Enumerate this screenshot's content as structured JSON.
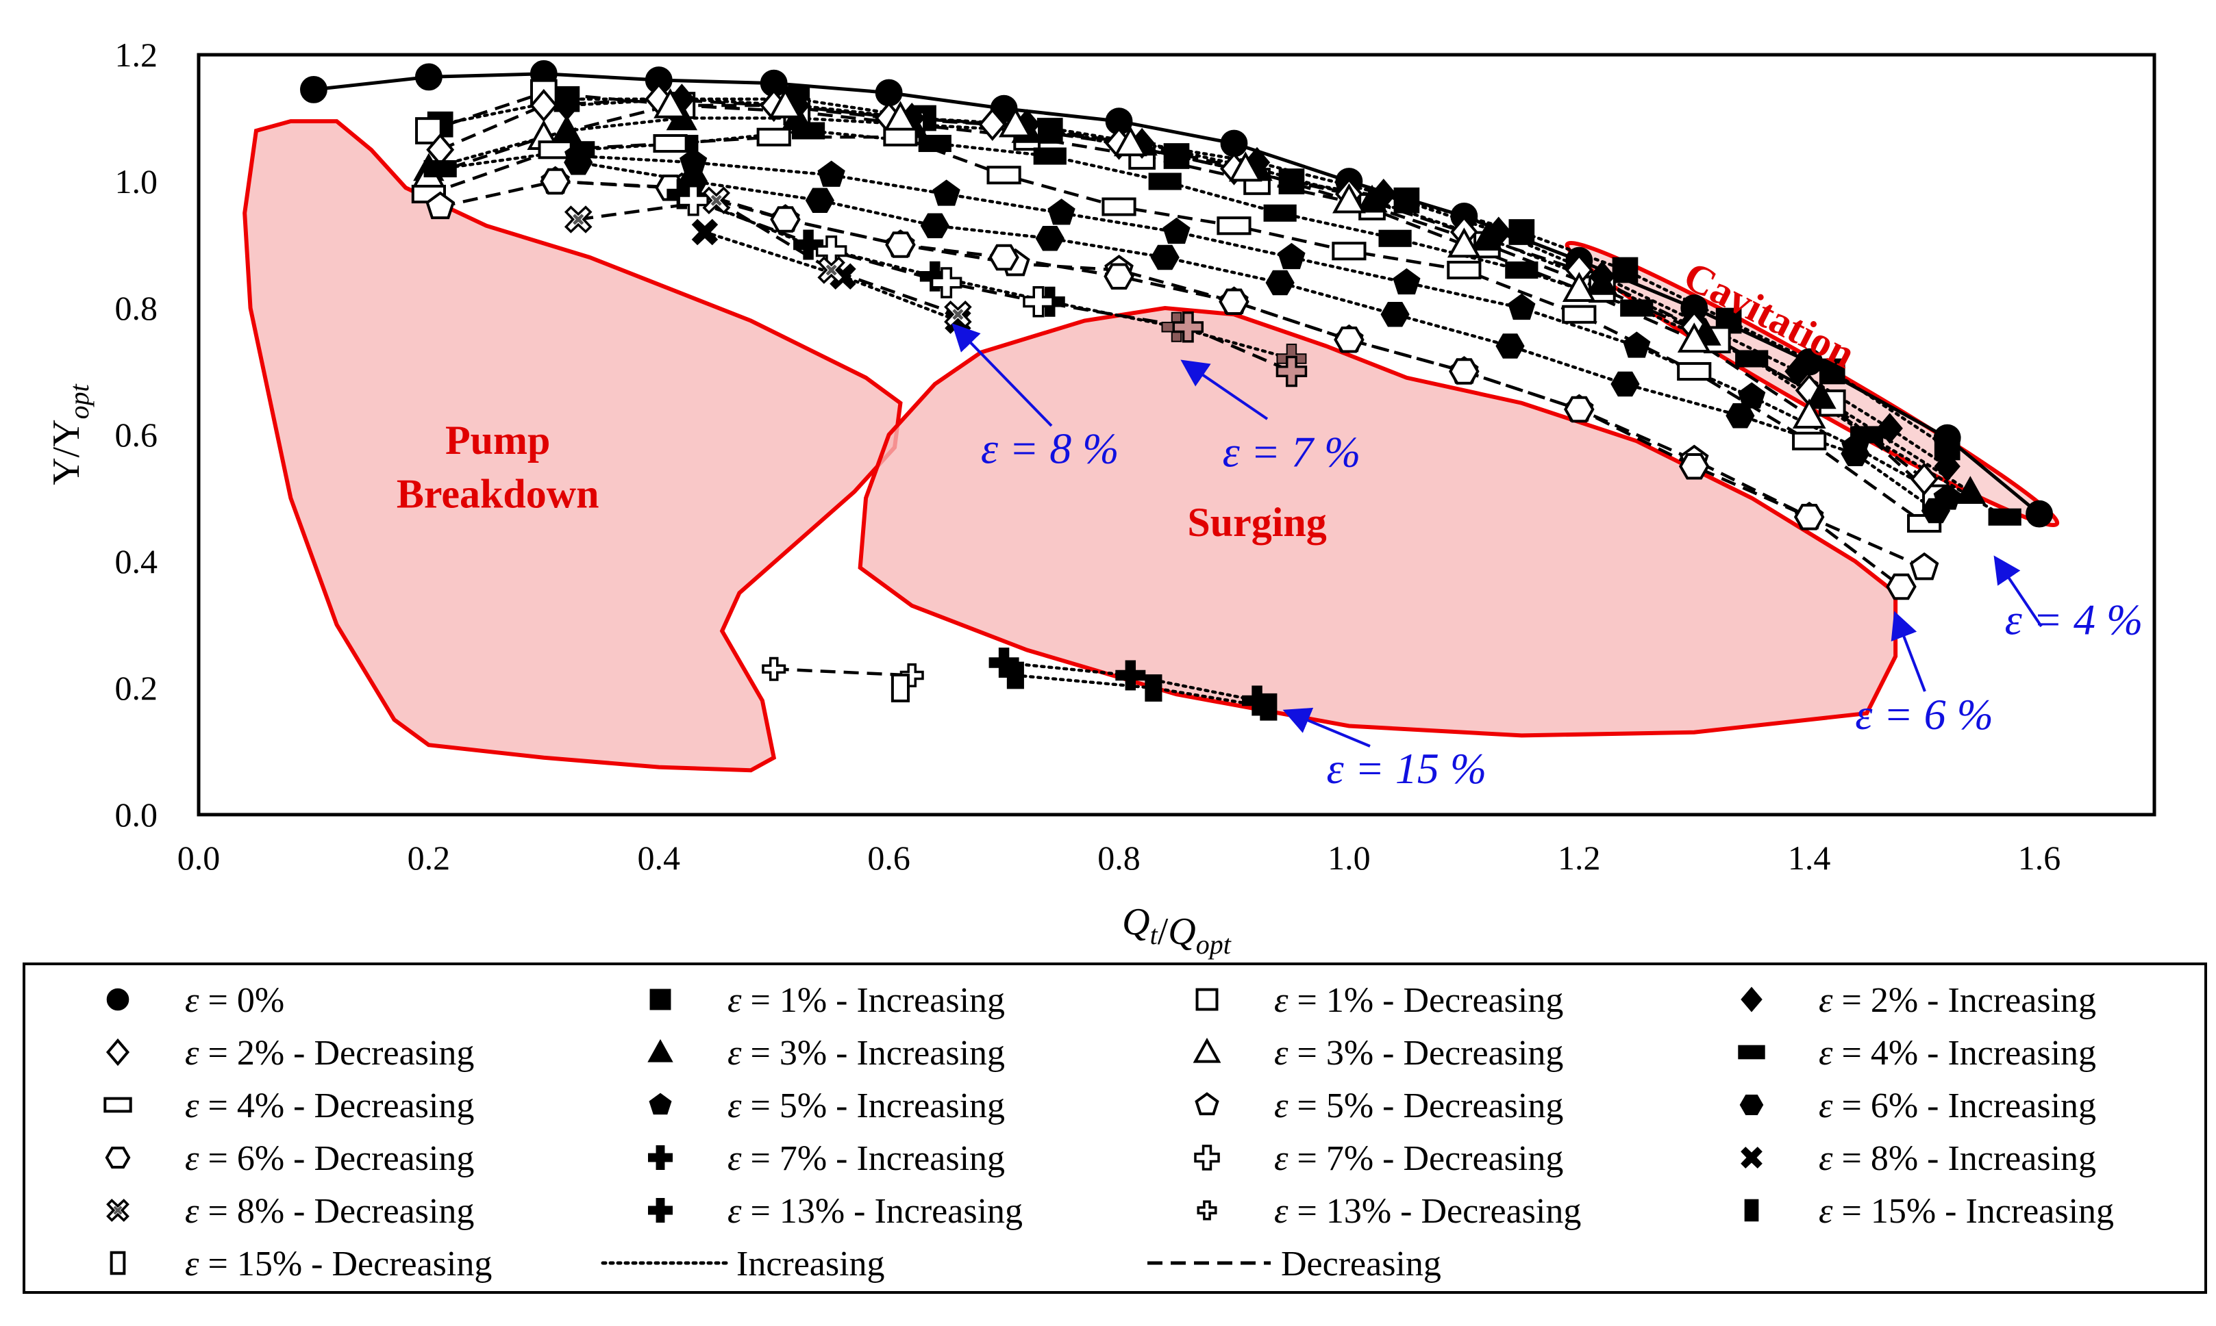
{
  "chart_data": {
    "type": "scatter",
    "title": "",
    "xlabel": "Q_t/Q_opt",
    "ylabel": "Υ/Υ_opt",
    "xlim": [
      0.0,
      1.7
    ],
    "ylim": [
      0.0,
      1.2
    ],
    "xticks": [
      "0.0",
      "0.2",
      "0.4",
      "0.6",
      "0.8",
      "1.0",
      "1.2",
      "1.4",
      "1.6"
    ],
    "yticks": [
      "0.0",
      "0.2",
      "0.4",
      "0.6",
      "0.8",
      "1.0",
      "1.2"
    ],
    "grid": false,
    "legend_position": "bottom",
    "regions": [
      {
        "name": "Pump",
        "name2": "Breakdown",
        "label_x": 0.26,
        "label_y": 0.57,
        "label_y2": 0.485
      },
      {
        "name": "Surging",
        "label_x": 0.92,
        "label_y": 0.44
      },
      {
        "name": "Cavitation",
        "label_x": 1.36,
        "label_y": 0.77
      }
    ],
    "eps_annotations": [
      {
        "text": "ε = 8 %",
        "x": 0.74,
        "y": 0.555
      },
      {
        "text": "ε = 7 %",
        "x": 0.95,
        "y": 0.55
      },
      {
        "text": "ε = 4 %",
        "x": 1.63,
        "y": 0.285
      },
      {
        "text": "ε = 6 %",
        "x": 1.5,
        "y": 0.135
      },
      {
        "text": "ε = 15 %",
        "x": 1.05,
        "y": 0.05
      }
    ],
    "series": [
      {
        "name": "ε = 0%",
        "marker": "circle-filled",
        "line": "solid",
        "x": [
          0.1,
          0.2,
          0.3,
          0.4,
          0.5,
          0.6,
          0.7,
          0.8,
          0.9,
          1.0,
          1.1,
          1.2,
          1.3,
          1.4,
          1.52,
          1.6
        ],
        "y": [
          1.145,
          1.165,
          1.17,
          1.16,
          1.155,
          1.14,
          1.115,
          1.095,
          1.06,
          1.0,
          0.945,
          0.875,
          0.8,
          0.715,
          0.595,
          0.475
        ]
      },
      {
        "name": "ε = 1% - Increasing",
        "marker": "square-filled",
        "line": "dotted",
        "x": [
          0.21,
          0.32,
          0.52,
          0.63,
          0.74,
          0.85,
          0.95,
          1.05,
          1.15,
          1.24,
          1.33,
          1.42,
          1.52
        ],
        "y": [
          1.09,
          1.13,
          1.13,
          1.1,
          1.08,
          1.04,
          1.0,
          0.97,
          0.92,
          0.86,
          0.78,
          0.7,
          0.58
        ]
      },
      {
        "name": "ε = 1% - Decreasing",
        "marker": "square-open",
        "line": "dashed",
        "x": [
          0.2,
          0.3,
          0.42,
          0.52,
          0.62,
          0.72,
          0.82,
          0.92,
          1.02,
          1.12,
          1.22,
          1.32,
          1.42,
          1.51
        ],
        "y": [
          1.08,
          1.14,
          1.12,
          1.11,
          1.09,
          1.07,
          1.04,
          1.0,
          0.96,
          0.9,
          0.83,
          0.75,
          0.65,
          0.5
        ]
      },
      {
        "name": "ε = 2% - Increasing",
        "marker": "diamond-filled",
        "line": "dotted",
        "x": [
          0.32,
          0.42,
          0.52,
          0.62,
          0.72,
          0.82,
          0.92,
          1.03,
          1.13,
          1.22,
          1.3,
          1.39,
          1.47,
          1.52
        ],
        "y": [
          1.12,
          1.13,
          1.12,
          1.1,
          1.09,
          1.06,
          1.03,
          0.98,
          0.92,
          0.85,
          0.78,
          0.7,
          0.61,
          0.55
        ]
      },
      {
        "name": "ε = 2% - Decreasing",
        "marker": "diamond-open",
        "line": "dashed",
        "x": [
          0.21,
          0.3,
          0.4,
          0.5,
          0.6,
          0.69,
          0.8,
          0.9,
          1.0,
          1.1,
          1.2,
          1.3,
          1.4,
          1.5
        ],
        "y": [
          1.05,
          1.12,
          1.13,
          1.12,
          1.1,
          1.09,
          1.06,
          1.02,
          0.98,
          0.92,
          0.86,
          0.77,
          0.67,
          0.53
        ]
      },
      {
        "name": "ε = 3% - Increasing",
        "marker": "triangle-filled",
        "line": "dotted",
        "x": [
          0.2,
          0.32,
          0.42,
          0.52,
          0.62,
          0.72,
          0.82,
          0.92,
          1.02,
          1.12,
          1.22,
          1.31,
          1.41,
          1.54
        ],
        "y": [
          1.02,
          1.08,
          1.1,
          1.1,
          1.09,
          1.08,
          1.06,
          1.02,
          0.97,
          0.91,
          0.84,
          0.76,
          0.66,
          0.51
        ]
      },
      {
        "name": "ε = 3% - Decreasing",
        "marker": "triangle-open",
        "line": "dashed",
        "x": [
          0.2,
          0.3,
          0.41,
          0.51,
          0.61,
          0.71,
          0.81,
          0.91,
          1.0,
          1.1,
          1.2,
          1.3,
          1.4
        ],
        "y": [
          1.01,
          1.07,
          1.12,
          1.12,
          1.1,
          1.09,
          1.06,
          1.02,
          0.97,
          0.9,
          0.83,
          0.75,
          0.63
        ]
      },
      {
        "name": "ε = 4% - Increasing",
        "marker": "rect-filled",
        "line": "dotted",
        "x": [
          0.21,
          0.33,
          0.42,
          0.53,
          0.64,
          0.74,
          0.84,
          0.94,
          1.04,
          1.15,
          1.25,
          1.35,
          1.45,
          1.57
        ],
        "y": [
          1.02,
          1.05,
          1.06,
          1.08,
          1.06,
          1.04,
          1.0,
          0.95,
          0.91,
          0.86,
          0.8,
          0.72,
          0.6,
          0.47
        ]
      },
      {
        "name": "ε = 4% - Decreasing",
        "marker": "rect-open",
        "line": "dashed",
        "x": [
          0.2,
          0.31,
          0.41,
          0.5,
          0.61,
          0.7,
          0.8,
          0.9,
          1.0,
          1.1,
          1.2,
          1.3,
          1.4,
          1.5
        ],
        "y": [
          0.98,
          1.05,
          1.06,
          1.07,
          1.07,
          1.01,
          0.96,
          0.93,
          0.89,
          0.86,
          0.79,
          0.7,
          0.59,
          0.46
        ]
      },
      {
        "name": "ε = 5% - Increasing",
        "marker": "pentagon-filled",
        "line": "dotted",
        "x": [
          0.33,
          0.43,
          0.55,
          0.65,
          0.75,
          0.85,
          0.95,
          1.05,
          1.15,
          1.25,
          1.35,
          1.44,
          1.52
        ],
        "y": [
          1.04,
          1.03,
          1.01,
          0.98,
          0.95,
          0.92,
          0.88,
          0.84,
          0.8,
          0.74,
          0.66,
          0.58,
          0.5
        ]
      },
      {
        "name": "ε = 5% - Decreasing",
        "marker": "pentagon-open",
        "line": "dashed",
        "x": [
          0.21,
          0.31,
          0.42,
          0.51,
          0.61,
          0.71,
          0.8,
          0.9,
          1.0,
          1.1,
          1.2,
          1.3,
          1.4,
          1.5
        ],
        "y": [
          0.96,
          1.0,
          0.99,
          0.94,
          0.9,
          0.87,
          0.86,
          0.81,
          0.75,
          0.7,
          0.64,
          0.56,
          0.47,
          0.39
        ]
      },
      {
        "name": "ε = 6% - Increasing",
        "marker": "hexagon-filled",
        "line": "dotted",
        "x": [
          0.33,
          0.43,
          0.54,
          0.64,
          0.74,
          0.84,
          0.94,
          1.04,
          1.14,
          1.24,
          1.34,
          1.44,
          1.51
        ],
        "y": [
          1.03,
          1.0,
          0.97,
          0.93,
          0.91,
          0.88,
          0.84,
          0.79,
          0.74,
          0.68,
          0.63,
          0.57,
          0.48
        ]
      },
      {
        "name": "ε = 6% - Decreasing",
        "marker": "hexagon-open",
        "line": "dashed",
        "x": [
          0.31,
          0.41,
          0.51,
          0.61,
          0.7,
          0.8,
          0.9,
          1.0,
          1.1,
          1.2,
          1.3,
          1.4,
          1.48
        ],
        "y": [
          1.0,
          0.99,
          0.94,
          0.9,
          0.88,
          0.85,
          0.81,
          0.75,
          0.7,
          0.64,
          0.55,
          0.47,
          0.36
        ]
      },
      {
        "name": "ε = 7% - Increasing",
        "marker": "plus-filled",
        "line": "dotted",
        "x": [
          0.42,
          0.53,
          0.64,
          0.74,
          0.85,
          0.95
        ],
        "y": [
          0.98,
          0.9,
          0.85,
          0.81,
          0.77,
          0.72
        ]
      },
      {
        "name": "ε = 7% - Decreasing",
        "marker": "plus-open",
        "line": "dashed",
        "x": [
          0.43,
          0.55,
          0.65,
          0.73,
          0.86,
          0.95
        ],
        "y": [
          0.97,
          0.89,
          0.84,
          0.81,
          0.77,
          0.7
        ]
      },
      {
        "name": "ε = 8% - Increasing",
        "marker": "x-filled",
        "line": "dotted",
        "x": [
          0.44,
          0.56,
          0.66
        ],
        "y": [
          0.92,
          0.85,
          0.78
        ]
      },
      {
        "name": "ε = 8% - Decreasing",
        "marker": "x-open",
        "line": "dashed",
        "x": [
          0.33,
          0.45,
          0.55,
          0.66
        ],
        "y": [
          0.94,
          0.97,
          0.86,
          0.79
        ]
      },
      {
        "name": "ε = 13% - Increasing",
        "marker": "plus-filled",
        "line": "dotted",
        "x": [
          0.7,
          0.81,
          0.92
        ],
        "y": [
          0.24,
          0.22,
          0.18
        ]
      },
      {
        "name": "ε = 13% - Decreasing",
        "marker": "plus-open-small",
        "line": "dashed",
        "x": [
          0.5,
          0.62
        ],
        "y": [
          0.23,
          0.22
        ]
      },
      {
        "name": "ε = 15% - Increasing",
        "marker": "tallrect-filled",
        "line": "dotted",
        "x": [
          0.71,
          0.83,
          0.93
        ],
        "y": [
          0.22,
          0.2,
          0.17
        ]
      },
      {
        "name": "ε = 15% - Decreasing",
        "marker": "tallrect-open",
        "line": "dashed",
        "x": [
          0.61
        ],
        "y": [
          0.2
        ]
      }
    ],
    "legend_extra": [
      {
        "name": "Increasing",
        "line": "dotted"
      },
      {
        "name": "Decreasing",
        "line": "dashed"
      }
    ]
  }
}
